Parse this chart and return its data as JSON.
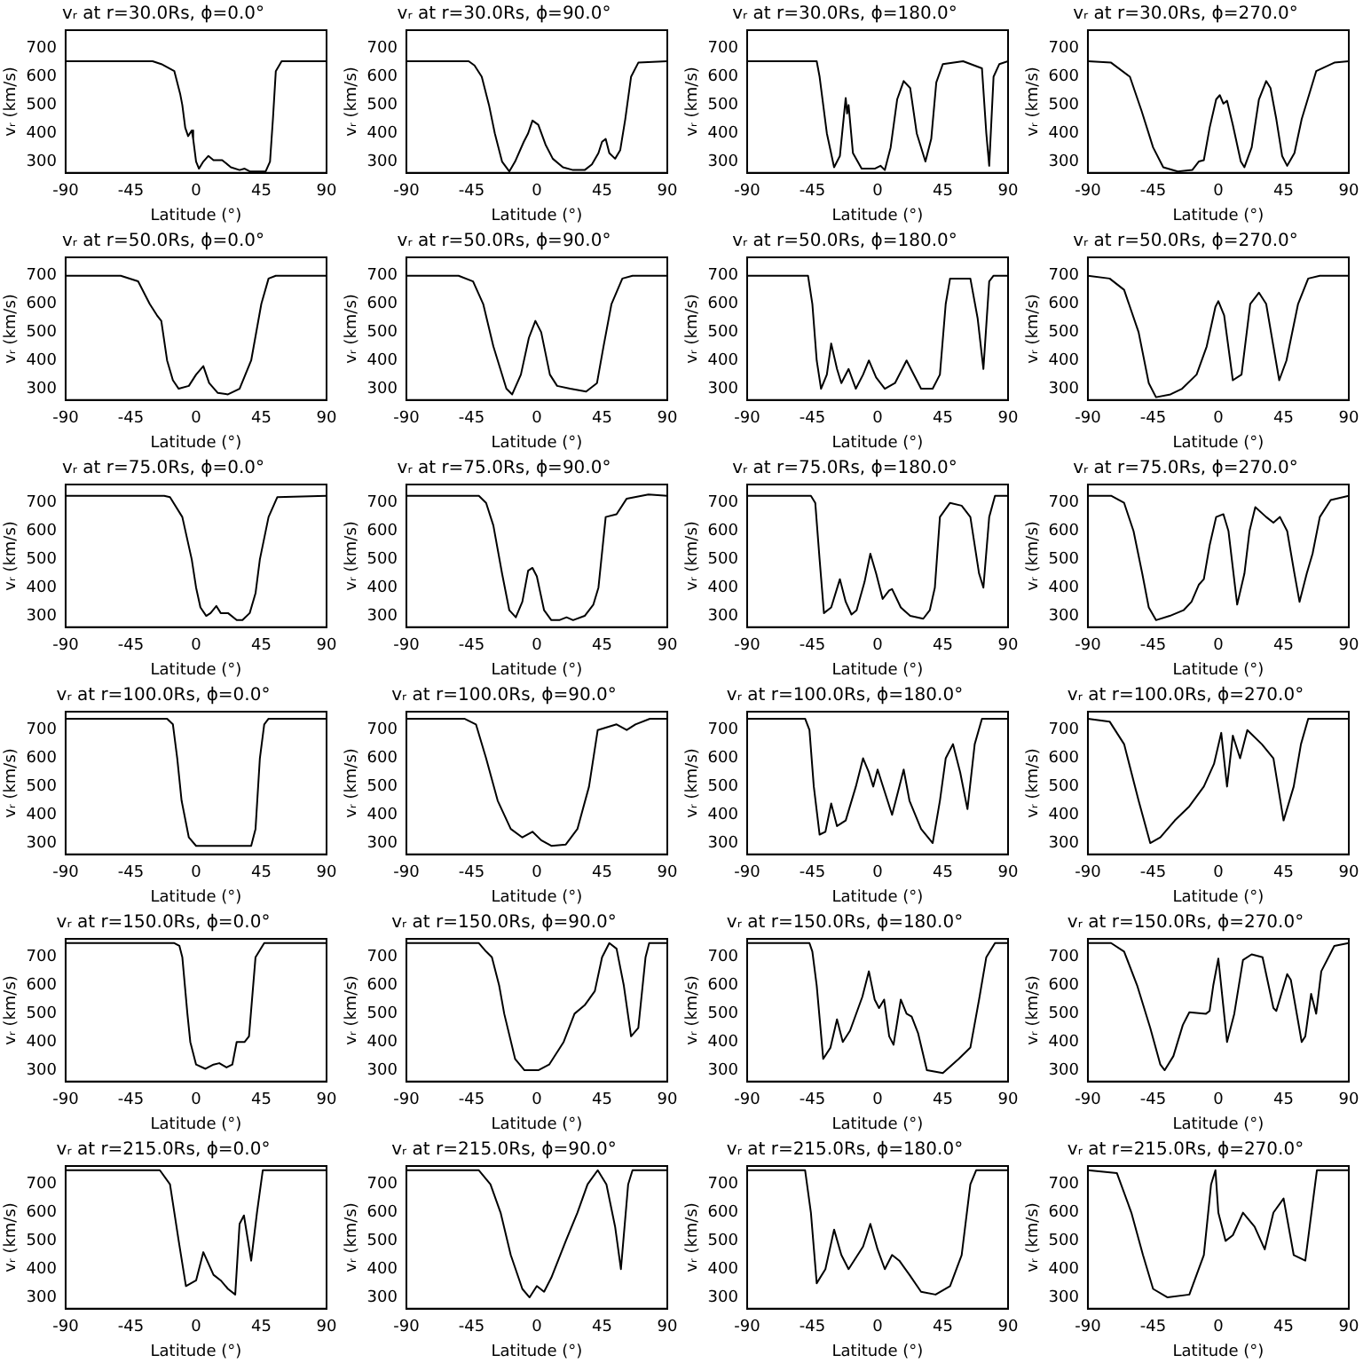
{
  "chart_data": [
    {
      "type": "line",
      "title": "vᵣ at r=30.0Rs, ϕ=0.0°",
      "xlabel": "Latitude (°)",
      "ylabel": "vᵣ (km/s)",
      "xlim": [
        -90,
        90
      ],
      "ylim": [
        260,
        765
      ],
      "xticks": [
        -90,
        -45,
        0,
        45,
        90
      ],
      "yticks": [
        300,
        400,
        500,
        600,
        700
      ],
      "series": [
        {
          "color": "#000000",
          "x": [
            -90,
            -30,
            -24,
            -15,
            -11,
            -9.5,
            -7.5,
            -5.5,
            -3,
            -2,
            0,
            2,
            5,
            8.5,
            12,
            18,
            24,
            30,
            33.5,
            37,
            48,
            51,
            53,
            55,
            59,
            90
          ],
          "values": [
            655,
            655,
            645,
            620,
            540,
            500,
            420,
            390,
            410,
            380,
            300,
            275,
            300,
            320,
            305,
            305,
            280,
            270,
            275,
            265,
            265,
            300,
            450,
            620,
            655,
            655
          ]
        }
      ]
    },
    {
      "type": "line",
      "title": "vᵣ at r=30.0Rs, ϕ=90.0°",
      "xlabel": "Latitude (°)",
      "ylabel": "vᵣ (km/s)",
      "xlim": [
        -90,
        90
      ],
      "ylim": [
        260,
        765
      ],
      "xticks": [
        -90,
        -45,
        0,
        45,
        90
      ],
      "yticks": [
        300,
        400,
        500,
        600,
        700
      ],
      "series": [
        {
          "color": "#000000",
          "x": [
            -90,
            -47,
            -43,
            -38,
            -33,
            -29,
            -24,
            -19,
            -15,
            -9,
            -6,
            -3,
            1,
            6,
            11,
            18,
            25,
            33,
            38,
            42.5,
            45,
            47.5,
            50,
            54,
            57.5,
            61,
            65,
            70,
            90
          ],
          "values": [
            655,
            655,
            640,
            600,
            500,
            400,
            300,
            265,
            300,
            370,
            400,
            445,
            430,
            360,
            310,
            280,
            270,
            270,
            290,
            330,
            370,
            380,
            330,
            310,
            340,
            450,
            600,
            650,
            655
          ]
        }
      ]
    },
    {
      "type": "line",
      "title": "vᵣ at r=30.0Rs, ϕ=180.0°",
      "xlabel": "Latitude (°)",
      "ylabel": "vᵣ (km/s)",
      "xlim": [
        -90,
        90
      ],
      "ylim": [
        260,
        765
      ],
      "xticks": [
        -90,
        -45,
        0,
        45,
        90
      ],
      "yticks": [
        300,
        400,
        500,
        600,
        700
      ],
      "series": [
        {
          "color": "#000000",
          "x": [
            -90,
            -42,
            -40,
            -35,
            -30,
            -26,
            -22,
            -21,
            -20,
            -17,
            -11,
            -2,
            2,
            5,
            9,
            13.5,
            18,
            22.5,
            27,
            33,
            37,
            40.5,
            45,
            59,
            72,
            75,
            77,
            80,
            84,
            90
          ],
          "values": [
            655,
            655,
            600,
            400,
            280,
            320,
            525,
            470,
            500,
            330,
            275,
            275,
            285,
            270,
            350,
            520,
            585,
            560,
            400,
            300,
            380,
            580,
            645,
            655,
            630,
            400,
            285,
            600,
            645,
            655
          ]
        }
      ]
    },
    {
      "type": "line",
      "title": "vᵣ at r=30.0Rs, ϕ=270.0°",
      "xlabel": "Latitude (°)",
      "ylabel": "vᵣ (km/s)",
      "xlim": [
        -90,
        90
      ],
      "ylim": [
        260,
        765
      ],
      "xticks": [
        -90,
        -45,
        0,
        45,
        90
      ],
      "yticks": [
        300,
        400,
        500,
        600,
        700
      ],
      "series": [
        {
          "color": "#000000",
          "x": [
            -90,
            -74,
            -61,
            -53,
            -45,
            -38,
            -28,
            -18,
            -13.5,
            -10,
            -6,
            -1.5,
            1,
            3.5,
            6,
            10,
            15.5,
            18,
            23,
            28,
            33,
            36,
            40,
            44,
            47.5,
            52.5,
            57.5,
            67.5,
            80,
            90
          ],
          "values": [
            655,
            650,
            600,
            480,
            350,
            280,
            265,
            270,
            300,
            305,
            420,
            520,
            535,
            505,
            515,
            430,
            300,
            280,
            350,
            520,
            585,
            560,
            450,
            320,
            285,
            330,
            450,
            620,
            650,
            655
          ]
        }
      ]
    },
    {
      "type": "line",
      "title": "vᵣ at r=50.0Rs, ϕ=0.0°",
      "xlabel": "Latitude (°)",
      "ylabel": "vᵣ (km/s)",
      "xlim": [
        -90,
        90
      ],
      "ylim": [
        260,
        765
      ],
      "xticks": [
        -90,
        -45,
        0,
        45,
        90
      ],
      "yticks": [
        300,
        400,
        500,
        600,
        700
      ],
      "series": [
        {
          "color": "#000000",
          "x": [
            -90,
            -52,
            -40,
            -32,
            -27,
            -24,
            -20,
            -16,
            -12,
            -5,
            0,
            5,
            9,
            15,
            22,
            30,
            38,
            45,
            50,
            55,
            90
          ],
          "values": [
            700,
            700,
            680,
            600,
            560,
            540,
            400,
            330,
            300,
            310,
            350,
            380,
            320,
            285,
            280,
            300,
            400,
            600,
            690,
            700,
            700
          ]
        }
      ]
    },
    {
      "type": "line",
      "title": "vᵣ at r=50.0Rs, ϕ=90.0°",
      "xlabel": "Latitude (°)",
      "ylabel": "vᵣ (km/s)",
      "xlim": [
        -90,
        90
      ],
      "ylim": [
        260,
        765
      ],
      "xticks": [
        -90,
        -45,
        0,
        45,
        90
      ],
      "yticks": [
        300,
        400,
        500,
        600,
        700
      ],
      "series": [
        {
          "color": "#000000",
          "x": [
            -90,
            -54,
            -44,
            -37,
            -30,
            -21,
            -17,
            -11,
            -5.5,
            -1,
            3,
            9,
            14,
            23,
            34,
            41.5,
            46,
            51.5,
            59,
            66,
            90
          ],
          "values": [
            700,
            700,
            680,
            600,
            450,
            300,
            280,
            350,
            480,
            540,
            500,
            350,
            310,
            300,
            290,
            320,
            450,
            600,
            690,
            700,
            700
          ]
        }
      ]
    },
    {
      "type": "line",
      "title": "vᵣ at r=50.0Rs, ϕ=180.0°",
      "xlabel": "Latitude (°)",
      "ylabel": "vᵣ (km/s)",
      "xlim": [
        -90,
        90
      ],
      "ylim": [
        260,
        765
      ],
      "xticks": [
        -90,
        -45,
        0,
        45,
        90
      ],
      "yticks": [
        300,
        400,
        500,
        600,
        700
      ],
      "series": [
        {
          "color": "#000000",
          "x": [
            -90,
            -48,
            -45,
            -42,
            -39,
            -35,
            -32,
            -28,
            -25,
            -20,
            -15,
            -10,
            -6,
            -1,
            5,
            12,
            20,
            24,
            30,
            38,
            43,
            47,
            50,
            64,
            69,
            73,
            77,
            80,
            90
          ],
          "values": [
            700,
            700,
            600,
            400,
            300,
            350,
            460,
            370,
            320,
            370,
            300,
            350,
            400,
            340,
            300,
            320,
            400,
            360,
            300,
            300,
            350,
            600,
            690,
            690,
            550,
            370,
            680,
            700,
            700
          ]
        }
      ]
    },
    {
      "type": "line",
      "title": "vᵣ at r=50.0Rs, ϕ=270.0°",
      "xlabel": "Latitude (°)",
      "ylabel": "vᵣ (km/s)",
      "xlim": [
        -90,
        90
      ],
      "ylim": [
        260,
        765
      ],
      "xticks": [
        -90,
        -45,
        0,
        45,
        90
      ],
      "yticks": [
        300,
        400,
        500,
        600,
        700
      ],
      "series": [
        {
          "color": "#000000",
          "x": [
            -90,
            -75,
            -65,
            -55,
            -48,
            -43,
            -33,
            -25,
            -15,
            -8,
            -2,
            0,
            4,
            10,
            16,
            22,
            28,
            33,
            38,
            42,
            47,
            55,
            62,
            70,
            90
          ],
          "values": [
            700,
            690,
            650,
            500,
            320,
            270,
            280,
            300,
            350,
            450,
            590,
            610,
            560,
            330,
            350,
            600,
            640,
            600,
            450,
            330,
            400,
            600,
            690,
            700,
            700
          ]
        }
      ]
    },
    {
      "type": "line",
      "title": "vᵣ at r=75.0Rs, ϕ=0.0°",
      "xlabel": "Latitude (°)",
      "ylabel": "vᵣ (km/s)",
      "xlim": [
        -90,
        90
      ],
      "ylim": [
        260,
        765
      ],
      "xticks": [
        -90,
        -45,
        0,
        45,
        90
      ],
      "yticks": [
        300,
        400,
        500,
        600,
        700
      ],
      "series": [
        {
          "color": "#000000",
          "x": [
            -90,
            -22,
            -18,
            -9.5,
            -3,
            0,
            3,
            7,
            10,
            14,
            17,
            22,
            28,
            32,
            37,
            41,
            44,
            50,
            56,
            90
          ],
          "values": [
            725,
            725,
            720,
            650,
            500,
            400,
            330,
            300,
            310,
            335,
            310,
            310,
            285,
            285,
            310,
            380,
            500,
            650,
            720,
            725
          ]
        }
      ]
    },
    {
      "type": "line",
      "title": "vᵣ at r=75.0Rs, ϕ=90.0°",
      "xlabel": "Latitude (°)",
      "ylabel": "vᵣ (km/s)",
      "xlim": [
        -90,
        90
      ],
      "ylim": [
        260,
        765
      ],
      "xticks": [
        -90,
        -45,
        0,
        45,
        90
      ],
      "yticks": [
        300,
        400,
        500,
        600,
        700
      ],
      "series": [
        {
          "color": "#000000",
          "x": [
            -90,
            -40,
            -35,
            -30,
            -24,
            -19,
            -14.5,
            -10,
            -6,
            -3,
            0,
            5,
            10,
            15.5,
            20.5,
            25,
            33,
            39,
            42.5,
            47.5,
            55,
            62,
            77,
            90
          ],
          "values": [
            725,
            725,
            700,
            620,
            450,
            320,
            295,
            350,
            460,
            470,
            440,
            320,
            285,
            285,
            295,
            285,
            300,
            340,
            400,
            650,
            660,
            715,
            730,
            725
          ]
        }
      ]
    },
    {
      "type": "line",
      "title": "vᵣ at r=75.0Rs, ϕ=180.0°",
      "xlabel": "Latitude (°)",
      "ylabel": "vᵣ (km/s)",
      "xlim": [
        -90,
        90
      ],
      "ylim": [
        260,
        765
      ],
      "xticks": [
        -90,
        -45,
        0,
        45,
        90
      ],
      "yticks": [
        300,
        400,
        500,
        600,
        700
      ],
      "series": [
        {
          "color": "#000000",
          "x": [
            -90,
            -46,
            -43,
            -40,
            -37,
            -32,
            -26,
            -22,
            -18,
            -14.5,
            -9,
            -5,
            -1,
            3.5,
            8,
            10,
            16,
            22.5,
            31.5,
            36,
            39.5,
            43,
            50,
            58,
            64,
            70,
            73,
            77,
            81,
            90
          ],
          "values": [
            725,
            725,
            700,
            500,
            310,
            330,
            430,
            350,
            305,
            320,
            420,
            520,
            450,
            360,
            390,
            395,
            330,
            300,
            290,
            320,
            400,
            650,
            700,
            690,
            650,
            450,
            400,
            650,
            725,
            725
          ]
        }
      ]
    },
    {
      "type": "line",
      "title": "vᵣ at r=75.0Rs, ϕ=270.0°",
      "xlabel": "Latitude (°)",
      "ylabel": "vᵣ (km/s)",
      "xlim": [
        -90,
        90
      ],
      "ylim": [
        260,
        765
      ],
      "xticks": [
        -90,
        -45,
        0,
        45,
        90
      ],
      "yticks": [
        300,
        400,
        500,
        600,
        700
      ],
      "series": [
        {
          "color": "#000000",
          "x": [
            -90,
            -74,
            -65,
            -58.5,
            -52.5,
            -48,
            -43,
            -33.5,
            -24,
            -18.5,
            -13.5,
            -10,
            -6,
            -1.5,
            3.5,
            7,
            13,
            18,
            21.5,
            25.5,
            33,
            38,
            42.5,
            47.5,
            52.5,
            56,
            61,
            65,
            70,
            77.5,
            90
          ],
          "values": [
            725,
            725,
            700,
            600,
            450,
            330,
            285,
            300,
            320,
            350,
            410,
            430,
            550,
            650,
            660,
            600,
            340,
            450,
            600,
            685,
            650,
            630,
            650,
            600,
            450,
            350,
            450,
            520,
            650,
            710,
            725
          ]
        }
      ]
    },
    {
      "type": "line",
      "title": "vᵣ at r=100.0Rs, ϕ=0.0°",
      "xlabel": "Latitude (°)",
      "ylabel": "vᵣ (km/s)",
      "xlim": [
        -90,
        90
      ],
      "ylim": [
        260,
        765
      ],
      "xticks": [
        -90,
        -45,
        0,
        45,
        90
      ],
      "yticks": [
        300,
        400,
        500,
        600,
        700
      ],
      "series": [
        {
          "color": "#000000",
          "x": [
            -90,
            -20,
            -16,
            -13,
            -10,
            -5,
            0,
            38,
            41,
            44,
            47,
            50,
            90
          ],
          "values": [
            740,
            740,
            720,
            600,
            450,
            320,
            290,
            290,
            350,
            600,
            720,
            740,
            740
          ]
        }
      ]
    },
    {
      "type": "line",
      "title": "vᵣ at r=100.0Rs, ϕ=90.0°",
      "xlabel": "Latitude (°)",
      "ylabel": "vᵣ (km/s)",
      "xlim": [
        -90,
        90
      ],
      "ylim": [
        260,
        765
      ],
      "xticks": [
        -90,
        -45,
        0,
        45,
        90
      ],
      "yticks": [
        300,
        400,
        500,
        600,
        700
      ],
      "series": [
        {
          "color": "#000000",
          "x": [
            -90,
            -50,
            -42,
            -35,
            -27,
            -18,
            -10,
            -3,
            3,
            10,
            20,
            28,
            36,
            42,
            55,
            62,
            68,
            78,
            90
          ],
          "values": [
            740,
            740,
            720,
            600,
            450,
            350,
            320,
            340,
            310,
            290,
            295,
            350,
            500,
            700,
            720,
            700,
            720,
            740,
            740
          ]
        }
      ]
    },
    {
      "type": "line",
      "title": "vᵣ at r=100.0Rs, ϕ=180.0°",
      "xlabel": "Latitude (°)",
      "ylabel": "vᵣ (km/s)",
      "xlim": [
        -90,
        90
      ],
      "ylim": [
        260,
        765
      ],
      "xticks": [
        -90,
        -45,
        0,
        45,
        90
      ],
      "yticks": [
        300,
        400,
        500,
        600,
        700
      ],
      "series": [
        {
          "color": "#000000",
          "x": [
            -90,
            -50,
            -47,
            -44,
            -40,
            -36,
            -32,
            -28,
            -22,
            -15,
            -10,
            -6,
            -3,
            0,
            5,
            10,
            15,
            18,
            22,
            30,
            38,
            43,
            47,
            52,
            57,
            62,
            67,
            72,
            90
          ],
          "values": [
            740,
            740,
            700,
            500,
            330,
            340,
            440,
            360,
            380,
            500,
            600,
            550,
            500,
            560,
            480,
            400,
            500,
            560,
            450,
            350,
            300,
            450,
            600,
            650,
            550,
            420,
            650,
            740,
            740
          ]
        }
      ]
    },
    {
      "type": "line",
      "title": "vᵣ at r=100.0Rs, ϕ=270.0°",
      "xlabel": "Latitude (°)",
      "ylabel": "vᵣ (km/s)",
      "xlim": [
        -90,
        90
      ],
      "ylim": [
        260,
        765
      ],
      "xticks": [
        -90,
        -45,
        0,
        45,
        90
      ],
      "yticks": [
        300,
        400,
        500,
        600,
        700
      ],
      "series": [
        {
          "color": "#000000",
          "x": [
            -90,
            -75,
            -65,
            -55,
            -47,
            -40,
            -30,
            -20,
            -10,
            -3,
            2,
            6,
            10,
            15,
            20,
            30,
            38,
            45,
            52,
            57,
            62,
            90
          ],
          "values": [
            740,
            730,
            650,
            450,
            300,
            320,
            380,
            430,
            500,
            580,
            690,
            500,
            680,
            600,
            700,
            650,
            600,
            380,
            500,
            650,
            740,
            740
          ]
        }
      ]
    },
    {
      "type": "line",
      "title": "vᵣ at r=150.0Rs, ϕ=0.0°",
      "xlabel": "Latitude (°)",
      "ylabel": "vᵣ (km/s)",
      "xlim": [
        -90,
        90
      ],
      "ylim": [
        260,
        765
      ],
      "xticks": [
        -90,
        -45,
        0,
        45,
        90
      ],
      "yticks": [
        300,
        400,
        500,
        600,
        700
      ],
      "series": [
        {
          "color": "#000000",
          "x": [
            -90,
            -15,
            -11.5,
            -9.5,
            -6,
            -4,
            0,
            6.5,
            12,
            16,
            21,
            25,
            28,
            33.5,
            36.5,
            41,
            47,
            90
          ],
          "values": [
            750,
            750,
            740,
            700,
            500,
            400,
            320,
            305,
            320,
            325,
            310,
            320,
            400,
            400,
            420,
            700,
            750,
            750
          ]
        }
      ]
    },
    {
      "type": "line",
      "title": "vᵣ at r=150.0Rs, ϕ=90.0°",
      "xlabel": "Latitude (°)",
      "ylabel": "vᵣ (km/s)",
      "xlim": [
        -90,
        90
      ],
      "ylim": [
        260,
        765
      ],
      "xticks": [
        -90,
        -45,
        0,
        45,
        90
      ],
      "yticks": [
        300,
        400,
        500,
        600,
        700
      ],
      "series": [
        {
          "color": "#000000",
          "x": [
            -90,
            -40,
            -35,
            -31,
            -26,
            -22.5,
            -15,
            -8.5,
            1,
            8.5,
            18.5,
            26,
            33,
            40,
            45,
            50,
            55,
            60,
            65,
            70,
            75,
            77.5,
            90
          ],
          "values": [
            750,
            750,
            720,
            700,
            600,
            500,
            340,
            300,
            300,
            320,
            400,
            500,
            530,
            580,
            700,
            750,
            730,
            600,
            420,
            450,
            700,
            750,
            750
          ]
        }
      ]
    },
    {
      "type": "line",
      "title": "vᵣ at r=150.0Rs, ϕ=180.0°",
      "xlabel": "Latitude (°)",
      "ylabel": "vᵣ (km/s)",
      "xlim": [
        -90,
        90
      ],
      "ylim": [
        260,
        765
      ],
      "xticks": [
        -90,
        -45,
        0,
        45,
        90
      ],
      "yticks": [
        300,
        400,
        500,
        600,
        700
      ],
      "series": [
        {
          "color": "#000000",
          "x": [
            -90,
            -47,
            -45,
            -42,
            -37.5,
            -32.5,
            -28,
            -24,
            -19,
            -10.5,
            -6,
            -2,
            1,
            4.5,
            8,
            11,
            16,
            20,
            23.5,
            28,
            34,
            45,
            56,
            64,
            70,
            75,
            81,
            90
          ],
          "values": [
            750,
            750,
            720,
            600,
            340,
            380,
            480,
            400,
            440,
            560,
            650,
            550,
            520,
            550,
            420,
            390,
            550,
            500,
            490,
            430,
            300,
            290,
            340,
            380,
            550,
            700,
            750,
            750
          ]
        }
      ]
    },
    {
      "type": "line",
      "title": "vᵣ at r=150.0Rs, ϕ=270.0°",
      "xlabel": "Latitude (°)",
      "ylabel": "vᵣ (km/s)",
      "xlim": [
        -90,
        90
      ],
      "ylim": [
        260,
        765
      ],
      "xticks": [
        -90,
        -45,
        0,
        45,
        90
      ],
      "yticks": [
        300,
        400,
        500,
        600,
        700
      ],
      "series": [
        {
          "color": "#000000",
          "x": [
            -90,
            -74,
            -65,
            -56,
            -47,
            -40,
            -37,
            -31,
            -24.5,
            -20,
            -8.5,
            -6,
            -3.5,
            0,
            6,
            11,
            17,
            23,
            30.5,
            38,
            40,
            47.5,
            50,
            57.5,
            60,
            64,
            67.5,
            71,
            80,
            90
          ],
          "values": [
            750,
            750,
            720,
            600,
            450,
            320,
            300,
            350,
            460,
            505,
            500,
            510,
            600,
            695,
            400,
            500,
            690,
            710,
            700,
            520,
            510,
            640,
            620,
            400,
            420,
            570,
            500,
            650,
            740,
            750
          ]
        }
      ]
    },
    {
      "type": "line",
      "title": "vᵣ at r=215.0Rs, ϕ=0.0°",
      "xlabel": "Latitude (°)",
      "ylabel": "vᵣ (km/s)",
      "xlim": [
        -90,
        90
      ],
      "ylim": [
        260,
        765
      ],
      "xticks": [
        -90,
        -45,
        0,
        45,
        90
      ],
      "yticks": [
        300,
        400,
        500,
        600,
        700
      ],
      "series": [
        {
          "color": "#000000",
          "x": [
            -90,
            -25,
            -18,
            -12,
            -7,
            0,
            5,
            12,
            17,
            22,
            27,
            30,
            33,
            38,
            42,
            46,
            90
          ],
          "values": [
            750,
            750,
            700,
            500,
            340,
            360,
            460,
            380,
            360,
            330,
            310,
            560,
            590,
            430,
            600,
            750,
            750
          ]
        }
      ]
    },
    {
      "type": "line",
      "title": "vᵣ at r=215.0Rs, ϕ=90.0°",
      "xlabel": "Latitude (°)",
      "ylabel": "vᵣ (km/s)",
      "xlim": [
        -90,
        90
      ],
      "ylim": [
        260,
        765
      ],
      "xticks": [
        -90,
        -45,
        0,
        45,
        90
      ],
      "yticks": [
        300,
        400,
        500,
        600,
        700
      ],
      "series": [
        {
          "color": "#000000",
          "x": [
            -90,
            -40,
            -32,
            -25,
            -18,
            -10,
            -5,
            0,
            5,
            10,
            20,
            28,
            35,
            42,
            48,
            54,
            58,
            63,
            66,
            90
          ],
          "values": [
            750,
            750,
            700,
            600,
            450,
            330,
            300,
            340,
            320,
            370,
            500,
            600,
            700,
            750,
            700,
            550,
            400,
            700,
            750,
            750
          ]
        }
      ]
    },
    {
      "type": "line",
      "title": "vᵣ at r=215.0Rs, ϕ=180.0°",
      "xlabel": "Latitude (°)",
      "ylabel": "vᵣ (km/s)",
      "xlim": [
        -90,
        90
      ],
      "ylim": [
        260,
        765
      ],
      "xticks": [
        -90,
        -45,
        0,
        45,
        90
      ],
      "yticks": [
        300,
        400,
        500,
        600,
        700
      ],
      "series": [
        {
          "color": "#000000",
          "x": [
            -90,
            -50,
            -46,
            -42,
            -36,
            -30,
            -25,
            -20,
            -10,
            -5,
            0,
            5,
            10,
            15,
            22,
            30,
            40,
            50,
            58,
            64,
            68,
            90
          ],
          "values": [
            750,
            750,
            600,
            350,
            400,
            540,
            450,
            400,
            480,
            560,
            470,
            400,
            450,
            430,
            380,
            320,
            310,
            340,
            450,
            700,
            750,
            750
          ]
        }
      ]
    },
    {
      "type": "line",
      "title": "vᵣ at r=215.0Rs, ϕ=270.0°",
      "xlabel": "Latitude (°)",
      "ylabel": "vᵣ (km/s)",
      "xlim": [
        -90,
        90
      ],
      "ylim": [
        260,
        765
      ],
      "xticks": [
        -90,
        -45,
        0,
        45,
        90
      ],
      "yticks": [
        300,
        400,
        500,
        600,
        700
      ],
      "series": [
        {
          "color": "#000000",
          "x": [
            -90,
            -70,
            -60,
            -52,
            -45,
            -35,
            -20,
            -10,
            -5,
            -2,
            0,
            5,
            10,
            17,
            25,
            32,
            38,
            45,
            52,
            60,
            63,
            68,
            90
          ],
          "values": [
            750,
            740,
            600,
            450,
            330,
            300,
            310,
            450,
            700,
            750,
            600,
            500,
            520,
            600,
            550,
            470,
            600,
            650,
            450,
            430,
            550,
            750,
            750
          ]
        }
      ]
    }
  ]
}
